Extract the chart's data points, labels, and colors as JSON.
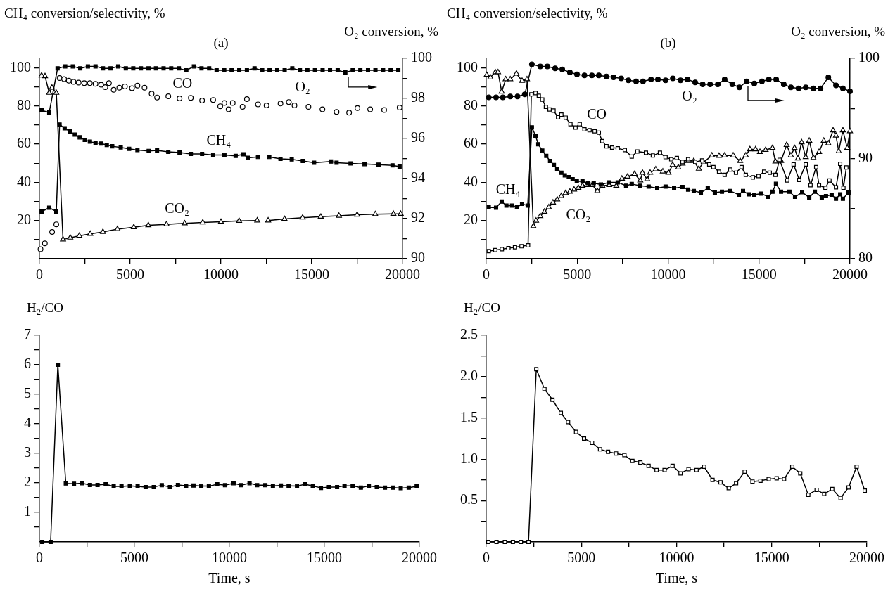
{
  "chart_data": [
    {
      "type": "line",
      "title": "(a)",
      "ylabel": "CH₄ conversion/selectivity, %",
      "y2label": "O₂ conversion, %",
      "xlim": [
        0,
        20000
      ],
      "xticks": [
        0,
        {
          "value": 2500,
          "label": null
        },
        5000,
        {
          "value": 7500,
          "label": null
        },
        10000,
        {
          "value": 12500,
          "label": null
        },
        15000,
        {
          "value": 17500,
          "label": null
        },
        20000
      ],
      "ylim": [
        0,
        105
      ],
      "yticks": [
        {
          "value": 10,
          "label": null
        },
        20,
        {
          "value": 30,
          "label": null
        },
        40,
        {
          "value": 50,
          "label": null
        },
        60,
        {
          "value": 70,
          "label": null
        },
        80,
        {
          "value": 90,
          "label": null
        },
        100
      ],
      "y2lim": [
        90,
        100
      ],
      "y2ticks": [
        90,
        {
          "value": 91,
          "label": null
        },
        92,
        {
          "value": 93,
          "label": null
        },
        94,
        {
          "value": 95,
          "label": null
        },
        96,
        {
          "value": 97,
          "label": null
        },
        98,
        {
          "value": 99,
          "label": null
        },
        100
      ],
      "series": [
        {
          "color": "#000000",
          "marker": "square",
          "axis": "y2",
          "x": [
            120,
            540,
            1000,
            1420,
            1840,
            2250,
            2670,
            3090,
            3500,
            3920,
            4340,
            4760,
            5170,
            5590,
            6010,
            6420,
            6840,
            7260,
            7680,
            8090,
            8510,
            8930,
            9350,
            9760,
            10180,
            10590,
            11010,
            11430,
            11850,
            12270,
            12680,
            13100,
            13510,
            13930,
            14350,
            14760,
            15180,
            15600,
            16010,
            16430,
            16850,
            17260,
            17680,
            18100,
            18510,
            18930,
            19350,
            19770
          ],
          "values": [
            97.4,
            97.3,
            99.5,
            99.6,
            99.6,
            99.5,
            99.6,
            99.6,
            99.5,
            99.5,
            99.6,
            99.5,
            99.5,
            99.5,
            99.5,
            99.5,
            99.5,
            99.5,
            99.5,
            99.4,
            99.6,
            99.5,
            99.5,
            99.4,
            99.4,
            99.4,
            99.4,
            99.4,
            99.5,
            99.4,
            99.4,
            99.4,
            99.4,
            99.5,
            99.4,
            99.4,
            99.4,
            99.4,
            99.4,
            99.4,
            99.3,
            99.4,
            99.4,
            99.4,
            99.4,
            99.4,
            99.4,
            99.4
          ]
        },
        {
          "color": "#000000",
          "marker": "square",
          "x": [
            120,
            540,
            930,
            1110,
            1390,
            1670,
            1950,
            2220,
            2500,
            2780,
            3090,
            3400,
            3710,
            4010,
            4480,
            4940,
            5400,
            6020,
            6480,
            7100,
            7720,
            8340,
            8960,
            9570,
            10190,
            10810,
            11240,
            11500,
            12040,
            12250,
            12660,
            13280,
            13900,
            14510,
            15130,
            16060,
            16370,
            17140,
            17910,
            18680,
            19450,
            19840
          ],
          "values": [
            24.7,
            26.7,
            24.7,
            70.3,
            68.3,
            66.7,
            65,
            63.6,
            62.3,
            61.3,
            60.7,
            60.3,
            59.6,
            58.9,
            58.3,
            57.6,
            56.9,
            56.5,
            56.7,
            56,
            55.6,
            54.9,
            54.9,
            54.3,
            54.3,
            53.9,
            54.7,
            52.9,
            53.3,
            null,
            53.3,
            52.3,
            52,
            51.2,
            50.3,
            50.9,
            50.3,
            49.9,
            49.6,
            49.3,
            48.9,
            48.3
          ]
        },
        {
          "type": "scatter",
          "color": "#000000",
          "marker": "circle",
          "colors": [
            "#ffffff",
            "#ffffff",
            "#ffffff",
            "#ffffff",
            "#ffffff",
            "#ffffff",
            "#ffffff",
            "#ffffff",
            "#ffffff",
            "#ffffff",
            "#ffffff",
            "#ffffff",
            "#ffffff",
            "#ffffff",
            "#ffffff",
            "#ffffff",
            "#ffffff",
            "#ffffff",
            "#ffffff",
            "#ffffff",
            "#ffffff",
            "#ffffff",
            "#ffffff",
            "#ffffff",
            "#ffffff",
            "#ffffff",
            "#ffffff",
            "#ffffff",
            "#ffffff",
            "#ffffff",
            "#ffffff",
            "#ffffff",
            "#ffffff",
            "#ffffff",
            "#ffffff",
            "#ffffff",
            "#ffffff",
            "#ffffff",
            "#ffffff",
            "#ffffff",
            "#ffffff",
            "#ffffff",
            "#ffffff",
            "#ffffff",
            "#ffffff",
            "#ffffff",
            "#ffffff"
          ],
          "x": [
            60,
            300,
            700,
            930,
            1110,
            1360,
            1620,
            1880,
            2160,
            2470,
            2780,
            3090,
            3400,
            3630,
            3830,
            4090,
            4400,
            4710,
            5100,
            5400,
            5790,
            6180,
            6480,
            7100,
            7720,
            8340,
            8960,
            9570,
            9960,
            10190,
            10420,
            10650,
            11190,
            11430,
            12040,
            12510,
            13280,
            13740,
            14050,
            14820,
            15590,
            16370,
            17060,
            17520,
            18220,
            18990,
            19840
          ],
          "values": [
            5,
            8,
            14,
            18,
            94.7,
            94.1,
            93.3,
            92.7,
            92.3,
            92,
            92,
            91.6,
            91.2,
            89.9,
            92,
            88.5,
            89.6,
            90.3,
            89.3,
            90.7,
            89.6,
            86.5,
            84.5,
            85.1,
            84,
            84.3,
            82.9,
            83.2,
            79.9,
            81.6,
            78.3,
            81.6,
            79.6,
            83.6,
            80.9,
            80.3,
            81.3,
            82.1,
            80.3,
            79.6,
            78.3,
            76.9,
            76.5,
            78.9,
            78.3,
            77.9,
            79.2
          ]
        },
        {
          "color": "#000000",
          "marker": "triangle",
          "colors": [
            "#ffffff",
            "#ffffff",
            "#ffffff",
            "#ffffff",
            "#ffffff",
            "#ffffff",
            "#ffffff",
            "#ffffff",
            "#ffffff",
            "#ffffff",
            "#ffffff",
            "#ffffff",
            "#ffffff",
            "#ffffff",
            "#ffffff",
            "#ffffff",
            "#ffffff",
            "#ffffff",
            "#ffffff",
            "#ffffff",
            "#ffffff",
            "#ffffff",
            "#ffffff",
            "#ffffff",
            "#ffffff",
            "#ffffff",
            "#ffffff",
            "#ffffff",
            "#ffffff"
          ],
          "x": [
            120,
            310,
            540,
            690,
            930,
            1300,
            1700,
            2200,
            2800,
            3500,
            4300,
            5200,
            6000,
            7000,
            8000,
            9000,
            10000,
            11000,
            12000,
            12300,
            12600,
            13500,
            14500,
            15500,
            16500,
            17500,
            18500,
            19500,
            19900
          ],
          "values": [
            96,
            95.6,
            86.9,
            89.6,
            86.9,
            10,
            11,
            12,
            13,
            14,
            15.5,
            16.5,
            17.5,
            18,
            18.5,
            19,
            19.3,
            19.8,
            20,
            null,
            20,
            20.8,
            21.5,
            22,
            22.5,
            23,
            23.3,
            23.5,
            23.5
          ]
        }
      ],
      "annotations": [
        "CO",
        "O₂",
        "CH₄",
        "CO₂"
      ]
    },
    {
      "type": "line",
      "title": "(b)",
      "ylabel": "CH₄ conversion/selectivity, %",
      "y2label": "O₂ conversion, %",
      "xlim": [
        0,
        20000
      ],
      "xticks": [
        0,
        {
          "value": 2500,
          "label": null
        },
        5000,
        {
          "value": 7500,
          "label": null
        },
        10000,
        {
          "value": 12500,
          "label": null
        },
        15000,
        {
          "value": 17500,
          "label": null
        },
        20000
      ],
      "ylim": [
        0,
        105
      ],
      "yticks": [
        {
          "value": 10,
          "label": null
        },
        20,
        {
          "value": 30,
          "label": null
        },
        40,
        {
          "value": 50,
          "label": null
        },
        60,
        {
          "value": 70,
          "label": null
        },
        80,
        {
          "value": 90,
          "label": null
        },
        100
      ],
      "y2lim": [
        80,
        100
      ],
      "y2ticks": [
        80,
        {
          "value": 85,
          "label": null
        },
        90,
        {
          "value": 95,
          "label": null
        },
        100
      ],
      "series": [
        {
          "color": "#000000",
          "marker": "circle",
          "axis": "y2",
          "x": [
            140,
            540,
            910,
            1320,
            1720,
            2120,
            2510,
            2970,
            3360,
            3790,
            4180,
            4600,
            4990,
            5400,
            5810,
            6190,
            6610,
            7000,
            7420,
            7820,
            8240,
            8620,
            9060,
            9440,
            9860,
            10260,
            10680,
            11070,
            11490,
            11900,
            12310,
            12730,
            13110,
            13530,
            13920,
            14320,
            14740,
            15160,
            15540,
            15940,
            16360,
            16750,
            17170,
            17570,
            17990,
            18380,
            18810,
            19230,
            19610,
            20000
          ],
          "values": [
            96.1,
            96.1,
            96.1,
            96.2,
            96.2,
            96.4,
            99.4,
            99.2,
            99.2,
            99.0,
            98.9,
            98.6,
            98.4,
            98.3,
            98.3,
            98.3,
            98.2,
            98.1,
            98.0,
            97.8,
            97.7,
            97.7,
            97.9,
            97.9,
            97.8,
            98.0,
            97.8,
            97.9,
            97.6,
            97.4,
            97.4,
            97.4,
            97.9,
            97.4,
            97.1,
            97.7,
            97.5,
            97.7,
            97.9,
            97.9,
            97.4,
            97.1,
            97.0,
            97.1,
            97.0,
            97.0,
            98.1,
            97.3,
            97.0,
            96.7
          ]
        },
        {
          "color": "#000000",
          "marker": "square",
          "x": [
            140,
            540,
            850,
            1110,
            1420,
            1690,
            1970,
            2280,
            2510,
            2710,
            2860,
            3080,
            3300,
            3510,
            3720,
            3900,
            4130,
            4320,
            4540,
            4750,
            4980,
            5290,
            5600,
            5910,
            6300,
            6760,
            7230,
            7690,
            8000,
            8470,
            8930,
            9400,
            9860,
            10330,
            10790,
            11100,
            11410,
            11800,
            12180,
            12570,
            12960,
            13420,
            13890,
            14120,
            14430,
            14740,
            15120,
            15510,
            15740,
            15930,
            16210,
            16670,
            16980,
            17370,
            17760,
            18070,
            18450,
            18680,
            18990,
            19230,
            19460,
            19610,
            19920
          ],
          "values": [
            26.9,
            26.7,
            29.9,
            27.8,
            27.8,
            26.9,
            28.7,
            27.8,
            68.8,
            64.5,
            60,
            56.6,
            53.9,
            51.2,
            49.1,
            47.1,
            45,
            43.7,
            42.7,
            41.6,
            40.5,
            40.5,
            39.6,
            39.6,
            38.9,
            40,
            40,
            38.2,
            39.1,
            38.2,
            37.8,
            36.9,
            37.8,
            36.9,
            37.6,
            36.2,
            35.5,
            34.6,
            36.9,
            34.6,
            35.1,
            35.5,
            33.5,
            35.5,
            33.7,
            33.5,
            34.1,
            32.4,
            35.1,
            39.2,
            35.1,
            35.1,
            32.4,
            34.8,
            32.1,
            35.1,
            32.1,
            32.8,
            33.5,
            31.4,
            33.7,
            31.4,
            34.6
          ]
        },
        {
          "color": "#000000",
          "marker": "square",
          "colors": [
            "#ffffff",
            "#ffffff",
            "#ffffff",
            "#ffffff",
            "#ffffff",
            "#ffffff",
            "#ffffff",
            "#ffffff",
            "#ffffff",
            "#ffffff",
            "#ffffff",
            "#ffffff",
            "#ffffff",
            "#ffffff",
            "#ffffff",
            "#ffffff",
            "#ffffff",
            "#ffffff",
            "#ffffff",
            "#ffffff",
            "#ffffff",
            "#ffffff",
            "#ffffff",
            "#ffffff",
            "#ffffff",
            "#ffffff",
            "#ffffff",
            "#ffffff",
            "#ffffff",
            "#ffffff",
            "#ffffff",
            "#ffffff",
            "#ffffff",
            "#ffffff",
            "#ffffff",
            "#ffffff",
            "#ffffff",
            "#ffffff",
            "#ffffff",
            "#ffffff",
            "#ffffff",
            "#ffffff",
            "#ffffff",
            "#ffffff",
            "#ffffff",
            "#ffffff",
            "#ffffff",
            "#ffffff",
            "#ffffff",
            "#ffffff",
            "#ffffff",
            "#ffffff",
            "#ffffff",
            "#ffffff",
            "#ffffff",
            "#ffffff",
            "#ffffff",
            "#ffffff",
            "#ffffff",
            "#ffffff",
            "#ffffff",
            "#ffffff",
            "#ffffff",
            "#ffffff",
            "#ffffff",
            "#ffffff",
            "#ffffff",
            "#ffffff"
          ],
          "x": [
            140,
            500,
            860,
            1220,
            1580,
            1940,
            2300,
            2480,
            2710,
            2890,
            3080,
            3280,
            3480,
            3700,
            3950,
            4130,
            4370,
            4630,
            4910,
            5140,
            5400,
            5680,
            5960,
            6190,
            6380,
            6610,
            6920,
            7230,
            7620,
            8000,
            8310,
            8780,
            9160,
            9550,
            9860,
            10170,
            10480,
            10790,
            11100,
            11490,
            11870,
            12260,
            12490,
            12800,
            13110,
            13420,
            13730,
            14040,
            14270,
            14660,
            14970,
            15280,
            15590,
            15900,
            16130,
            16550,
            16900,
            17210,
            17570,
            17830,
            18140,
            18300,
            18650,
            18870,
            19230,
            19460,
            19640,
            19800
          ],
          "values": [
            4,
            4.5,
            5,
            5.5,
            6,
            6.5,
            7,
            86.1,
            86.8,
            85.4,
            83.4,
            79.6,
            78.2,
            77.6,
            74.1,
            75.5,
            73.9,
            70.5,
            68.7,
            70.5,
            67.8,
            67.3,
            66.8,
            66,
            61.6,
            58.9,
            58.2,
            57.8,
            56.9,
            53.5,
            56.2,
            55.5,
            54.1,
            55.5,
            53.2,
            52.1,
            52.8,
            50.7,
            52.1,
            50.7,
            51.5,
            49.4,
            48,
            45.6,
            43.9,
            46.7,
            45,
            48,
            43.9,
            42.6,
            43.3,
            45.6,
            45,
            43.9,
            51.8,
            41,
            49.4,
            41.3,
            49.4,
            38.5,
            48,
            38.5,
            37.1,
            41,
            37.4,
            49.7,
            37.1,
            47.8
          ]
        },
        {
          "color": "#000000",
          "marker": "triangle",
          "colors": [
            "#ffffff",
            "#ffffff",
            "#ffffff",
            "#ffffff",
            "#ffffff",
            "#ffffff",
            "#ffffff",
            "#ffffff",
            "#ffffff",
            "#ffffff",
            "#ffffff",
            "#ffffff",
            "#ffffff",
            "#ffffff",
            "#ffffff",
            "#ffffff",
            "#ffffff",
            "#ffffff",
            "#ffffff",
            "#ffffff",
            "#ffffff",
            "#ffffff",
            "#ffffff",
            "#ffffff",
            "#ffffff",
            "#ffffff",
            "#ffffff",
            "#ffffff",
            "#ffffff",
            "#ffffff",
            "#ffffff",
            "#ffffff",
            "#ffffff",
            "#ffffff",
            "#ffffff",
            "#ffffff",
            "#ffffff",
            "#ffffff",
            "#ffffff",
            "#ffffff",
            "#ffffff",
            "#ffffff",
            "#ffffff",
            "#ffffff",
            "#ffffff",
            "#ffffff",
            "#ffffff",
            "#ffffff",
            "#ffffff",
            "#ffffff",
            "#ffffff",
            "#ffffff",
            "#ffffff",
            "#ffffff",
            "#ffffff",
            "#ffffff",
            "#ffffff",
            "#ffffff",
            "#ffffff",
            "#ffffff",
            "#ffffff",
            "#ffffff",
            "#ffffff",
            "#ffffff",
            "#ffffff",
            "#ffffff",
            "#ffffff",
            "#ffffff",
            "#ffffff",
            "#ffffff",
            "#ffffff",
            "#ffffff",
            "#ffffff",
            "#ffffff",
            "#ffffff",
            "#ffffff"
          ],
          "x": [
            30,
            230,
            500,
            650,
            850,
            1070,
            1320,
            1660,
            1970,
            2240,
            2590,
            2740,
            2970,
            3200,
            3440,
            3670,
            3900,
            4130,
            4370,
            4600,
            4830,
            5060,
            5290,
            5530,
            5840,
            6110,
            6380,
            6760,
            7150,
            7460,
            7770,
            8160,
            8470,
            8590,
            8850,
            9010,
            9320,
            9710,
            10020,
            10250,
            10560,
            10790,
            11100,
            11410,
            11690,
            11950,
            12410,
            12800,
            13110,
            13580,
            13960,
            14270,
            14500,
            14810,
            15050,
            15360,
            15740,
            15900,
            16210,
            16520,
            16750,
            16950,
            17140,
            17340,
            17570,
            17760,
            17990,
            18300,
            18560,
            18810,
            19070,
            19230,
            19380,
            19610,
            19850,
            20000
          ],
          "values": [
            96.3,
            95,
            97.7,
            97.7,
            87.5,
            94,
            94,
            97,
            93.2,
            94,
            17,
            19.9,
            22.3,
            24.6,
            26.9,
            29.4,
            31,
            32.8,
            34.4,
            35.1,
            36.2,
            37.1,
            38.2,
            38.6,
            38.6,
            35.4,
            38.2,
            38.6,
            38.2,
            41.9,
            43,
            44.4,
            41,
            45,
            41.6,
            45,
            46.8,
            45.7,
            45,
            49.1,
            47.8,
            49.8,
            51.2,
            51.2,
            47.1,
            50.5,
            54.1,
            53.9,
            54.1,
            54.1,
            51.2,
            54.1,
            57.3,
            57.3,
            55.9,
            57,
            58,
            50.9,
            51.2,
            59.6,
            54.1,
            58,
            52.5,
            61,
            53.2,
            61.8,
            52.8,
            55.9,
            61.8,
            60.4,
            67.2,
            64.5,
            56.3,
            67.2,
            58,
            66.8
          ]
        }
      ],
      "annotations": [
        "O₂",
        "CO",
        "CH₄",
        "CO₂"
      ]
    },
    {
      "type": "line",
      "ylabel": "H₂/CO",
      "xlabel": "Time, s",
      "xlim": [
        0,
        20000
      ],
      "xticks": [
        0,
        {
          "value": 2500,
          "label": null
        },
        5000,
        {
          "value": 7500,
          "label": null
        },
        10000,
        {
          "value": 12500,
          "label": null
        },
        15000,
        {
          "value": 17500,
          "label": null
        },
        20000
      ],
      "ylim": [
        0,
        7
      ],
      "yticks": [
        {
          "value": 0.5,
          "label": null
        },
        1,
        {
          "value": 1.5,
          "label": null
        },
        2,
        {
          "value": 2.5,
          "label": null
        },
        3,
        {
          "value": 3.5,
          "label": null
        },
        4,
        {
          "value": 4.5,
          "label": null
        },
        5,
        {
          "value": 5.5,
          "label": null
        },
        6,
        {
          "value": 6.5,
          "label": null
        },
        7
      ],
      "series": [
        {
          "color": "#000000",
          "marker": "square",
          "x": [
            150,
            590,
            970,
            1390,
            1820,
            2240,
            2660,
            3060,
            3490,
            3910,
            4320,
            4760,
            5170,
            5590,
            6020,
            6440,
            6870,
            7290,
            7720,
            8110,
            8520,
            8920,
            9360,
            9770,
            10220,
            10620,
            11060,
            11460,
            11890,
            12290,
            12710,
            13120,
            13560,
            13970,
            14390,
            14820,
            15240,
            15670,
            16060,
            16490,
            16920,
            17340,
            17760,
            18190,
            18610,
            19020,
            19440,
            19860
          ],
          "values": [
            0,
            0,
            6.0,
            1.98,
            1.97,
            1.99,
            1.93,
            1.93,
            1.95,
            1.88,
            1.88,
            1.9,
            1.88,
            1.86,
            1.86,
            1.92,
            1.86,
            1.93,
            1.9,
            1.91,
            1.89,
            1.89,
            1.95,
            1.92,
            1.99,
            1.92,
            1.99,
            1.92,
            1.92,
            1.9,
            1.91,
            1.9,
            1.89,
            1.95,
            1.9,
            1.83,
            1.86,
            1.86,
            1.9,
            1.9,
            1.84,
            1.9,
            1.86,
            1.84,
            1.84,
            1.82,
            1.84,
            1.88
          ]
        }
      ]
    },
    {
      "type": "line",
      "ylabel": "H₂/CO",
      "xlabel": "Time, s",
      "xlim": [
        0,
        20000
      ],
      "xticks": [
        0,
        {
          "value": 2500,
          "label": null
        },
        5000,
        {
          "value": 7500,
          "label": null
        },
        10000,
        {
          "value": 12500,
          "label": null
        },
        15000,
        {
          "value": 17500,
          "label": null
        },
        20000
      ],
      "ylim": [
        0,
        2.5
      ],
      "yticks": [
        {
          "value": 0.25,
          "label": null
        },
        0.5,
        {
          "value": 0.75,
          "label": null
        },
        {
          "value": 1,
          "label": "1.0"
        },
        {
          "value": 1.25,
          "label": null
        },
        1.5,
        {
          "value": 1.75,
          "label": null
        },
        {
          "value": 2,
          "label": "2.0"
        },
        {
          "value": 2.25,
          "label": null
        },
        2.5
      ],
      "series": [
        {
          "color": "#000000",
          "marker": "square",
          "colors": [
            "#ffffff",
            "#ffffff",
            "#ffffff",
            "#ffffff",
            "#ffffff",
            "#ffffff",
            "#ffffff",
            "#ffffff",
            "#ffffff",
            "#ffffff",
            "#ffffff",
            "#ffffff",
            "#ffffff",
            "#ffffff",
            "#ffffff",
            "#ffffff",
            "#ffffff",
            "#ffffff",
            "#ffffff",
            "#ffffff",
            "#ffffff",
            "#ffffff",
            "#ffffff",
            "#ffffff",
            "#ffffff",
            "#ffffff",
            "#ffffff",
            "#ffffff",
            "#ffffff",
            "#ffffff",
            "#ffffff",
            "#ffffff",
            "#ffffff",
            "#ffffff",
            "#ffffff",
            "#ffffff",
            "#ffffff",
            "#ffffff",
            "#ffffff",
            "#ffffff",
            "#ffffff",
            "#ffffff",
            "#ffffff",
            "#ffffff",
            "#ffffff",
            "#ffffff",
            "#ffffff",
            "#ffffff"
          ],
          "x": [
            110,
            540,
            980,
            1400,
            1820,
            2220,
            2630,
            3060,
            3480,
            3920,
            4300,
            4720,
            5140,
            5560,
            5980,
            6400,
            6820,
            7260,
            7680,
            8100,
            8530,
            8950,
            9370,
            9790,
            10210,
            10630,
            11050,
            11450,
            11890,
            12310,
            12740,
            13130,
            13580,
            13990,
            14410,
            14840,
            15260,
            15650,
            16080,
            16500,
            16920,
            17360,
            17760,
            18180,
            18620,
            19040,
            19460,
            19890
          ],
          "values": [
            0,
            0,
            0,
            0,
            0,
            0,
            2.09,
            1.85,
            1.72,
            1.56,
            1.45,
            1.33,
            1.25,
            1.2,
            1.12,
            1.09,
            1.07,
            1.05,
            0.98,
            0.96,
            0.92,
            0.87,
            0.87,
            0.92,
            0.83,
            0.88,
            0.87,
            0.91,
            0.75,
            0.72,
            0.65,
            0.71,
            0.85,
            0.73,
            0.74,
            0.76,
            0.77,
            0.76,
            0.91,
            0.83,
            0.57,
            0.63,
            0.58,
            0.64,
            0.53,
            0.66,
            0.91,
            0.62
          ]
        }
      ]
    }
  ]
}
